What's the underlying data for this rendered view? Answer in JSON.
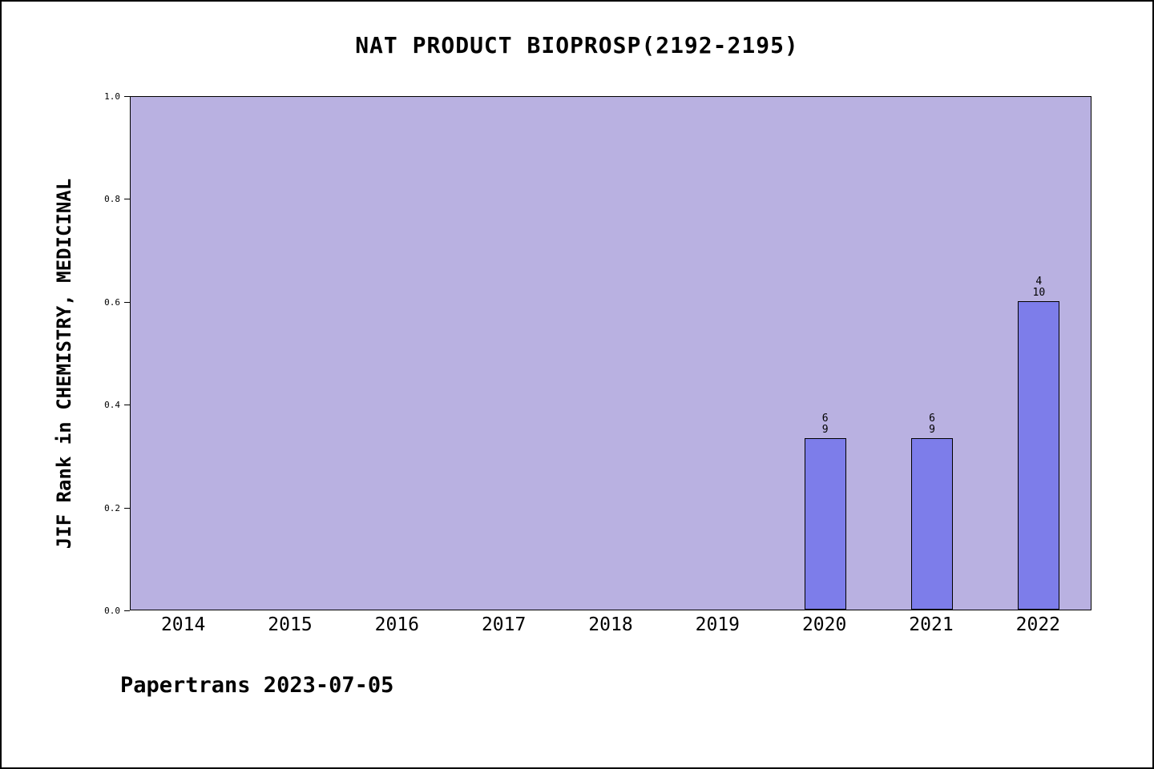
{
  "title": "NAT PRODUCT BIOPROSP(2192-2195)",
  "footer": "Papertrans 2023-07-05",
  "chart_data": {
    "type": "bar",
    "title": "NAT PRODUCT BIOPROSP(2192-2195)",
    "xlabel": "",
    "ylabel": "JIF Rank in CHEMISTRY, MEDICINAL",
    "categories": [
      "2014",
      "2015",
      "2016",
      "2017",
      "2018",
      "2019",
      "2020",
      "2021",
      "2022"
    ],
    "values": [
      null,
      null,
      null,
      null,
      null,
      null,
      0.333,
      0.333,
      0.6
    ],
    "bar_labels": [
      null,
      null,
      null,
      null,
      null,
      null,
      [
        "6",
        "9"
      ],
      [
        "6",
        "9"
      ],
      [
        "4",
        "10"
      ]
    ],
    "ylim": [
      0,
      1
    ],
    "y_ticks": [
      {
        "v": 0.0,
        "label": "0.0"
      },
      {
        "v": 0.2,
        "label": "0.2"
      },
      {
        "v": 0.4,
        "label": "0.4"
      },
      {
        "v": 0.6,
        "label": "0.6"
      },
      {
        "v": 0.8,
        "label": "0.8"
      },
      {
        "v": 1.0,
        "label": "1.0"
      }
    ],
    "grid": false,
    "legend": null,
    "colors": {
      "plot_bg": "#b9b1e1",
      "bar_fill": "#7d7dea",
      "bar_border": "#000000"
    }
  }
}
